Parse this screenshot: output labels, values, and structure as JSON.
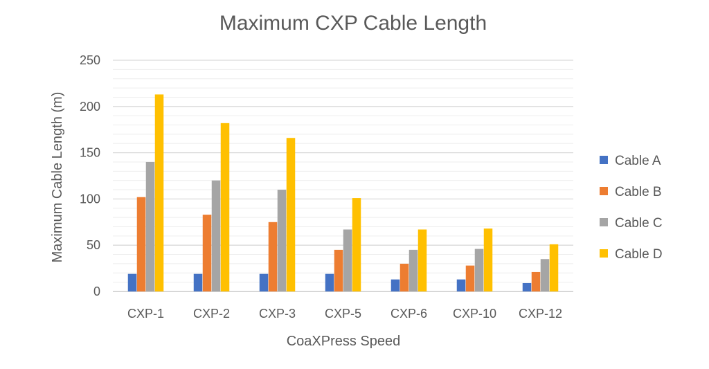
{
  "chart_data": {
    "type": "bar",
    "title": "Maximum CXP Cable Length",
    "xlabel": "CoaXPress Speed",
    "ylabel": "Maximum Cable Length (m)",
    "ylim": [
      0,
      250
    ],
    "major_step": 50,
    "minor_step": 10,
    "grid": true,
    "legend_position": "right",
    "categories": [
      "CXP-1",
      "CXP-2",
      "CXP-3",
      "CXP-5",
      "CXP-6",
      "CXP-10",
      "CXP-12"
    ],
    "series": [
      {
        "name": "Cable A",
        "color": "#4472c4",
        "values": [
          19,
          19,
          19,
          19,
          13,
          13,
          9
        ]
      },
      {
        "name": "Cable B",
        "color": "#ed7d31",
        "values": [
          102,
          83,
          75,
          45,
          30,
          28,
          21
        ]
      },
      {
        "name": "Cable C",
        "color": "#a5a5a5",
        "values": [
          140,
          120,
          110,
          67,
          45,
          46,
          35
        ]
      },
      {
        "name": "Cable D",
        "color": "#ffc000",
        "values": [
          213,
          182,
          166,
          101,
          67,
          68,
          51
        ]
      }
    ]
  }
}
